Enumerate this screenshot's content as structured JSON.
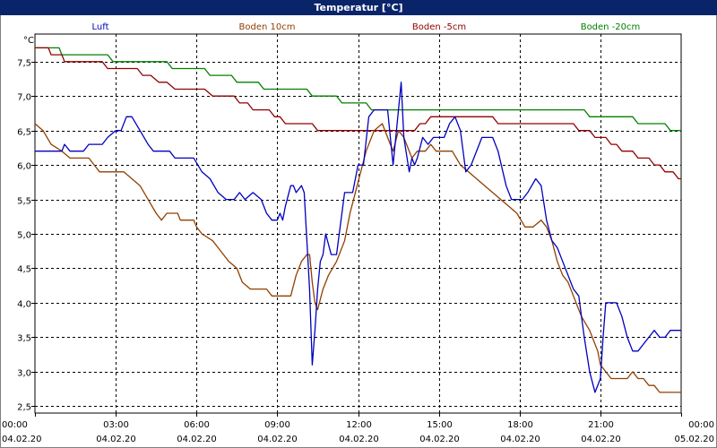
{
  "chart_data": {
    "type": "line",
    "title": "Temperatur [°C]",
    "ylabel": "°C",
    "xlabel": "",
    "ylim": [
      2.4,
      7.9
    ],
    "xlim": [
      0,
      24
    ],
    "grid": true,
    "legend_position": "top",
    "y_ticks": [
      "2,5",
      "3,0",
      "3,5",
      "4,0",
      "4,5",
      "5,0",
      "5,5",
      "6,0",
      "6,5",
      "7,0",
      "7,5"
    ],
    "y_tick_values": [
      2.5,
      3.0,
      3.5,
      4.0,
      4.5,
      5.0,
      5.5,
      6.0,
      6.5,
      7.0,
      7.5
    ],
    "x_ticks": [
      {
        "time": "00:00",
        "date": "04.02.20"
      },
      {
        "time": "03:00",
        "date": "04.02.20"
      },
      {
        "time": "06:00",
        "date": "04.02.20"
      },
      {
        "time": "09:00",
        "date": "04.02.20"
      },
      {
        "time": "12:00",
        "date": "04.02.20"
      },
      {
        "time": "15:00",
        "date": "04.02.20"
      },
      {
        "time": "18:00",
        "date": "04.02.20"
      },
      {
        "time": "21:00",
        "date": "04.02.20"
      },
      {
        "time": "00:00",
        "date": "05.02.20"
      }
    ],
    "x_tick_hours": [
      0,
      3,
      6,
      9,
      12,
      15,
      18,
      21,
      24
    ],
    "x_unit": "hours since 04.02.20 00:00",
    "series": [
      {
        "name": "Luft",
        "color": "#0000c0",
        "points": [
          [
            0,
            6.2
          ],
          [
            0.5,
            6.2
          ],
          [
            1,
            6.2
          ],
          [
            1.1,
            6.3
          ],
          [
            1.3,
            6.2
          ],
          [
            1.8,
            6.2
          ],
          [
            2,
            6.3
          ],
          [
            2.5,
            6.3
          ],
          [
            2.7,
            6.4
          ],
          [
            3,
            6.5
          ],
          [
            3.2,
            6.5
          ],
          [
            3.4,
            6.7
          ],
          [
            3.6,
            6.7
          ],
          [
            3.9,
            6.5
          ],
          [
            4.2,
            6.3
          ],
          [
            4.4,
            6.2
          ],
          [
            5,
            6.2
          ],
          [
            5.2,
            6.1
          ],
          [
            5.9,
            6.1
          ],
          [
            6.2,
            5.9
          ],
          [
            6.5,
            5.8
          ],
          [
            6.8,
            5.6
          ],
          [
            7.1,
            5.5
          ],
          [
            7.4,
            5.5
          ],
          [
            7.6,
            5.6
          ],
          [
            7.8,
            5.5
          ],
          [
            8.1,
            5.6
          ],
          [
            8.4,
            5.5
          ],
          [
            8.6,
            5.3
          ],
          [
            8.8,
            5.2
          ],
          [
            9,
            5.2
          ],
          [
            9.1,
            5.3
          ],
          [
            9.2,
            5.2
          ],
          [
            9.3,
            5.4
          ],
          [
            9.5,
            5.7
          ],
          [
            9.6,
            5.7
          ],
          [
            9.7,
            5.6
          ],
          [
            9.9,
            5.7
          ],
          [
            10,
            5.6
          ],
          [
            10.2,
            4.2
          ],
          [
            10.3,
            3.1
          ],
          [
            10.4,
            3.6
          ],
          [
            10.5,
            4.2
          ],
          [
            10.6,
            4.6
          ],
          [
            10.7,
            4.7
          ],
          [
            10.8,
            5.0
          ],
          [
            11,
            4.7
          ],
          [
            11.2,
            4.7
          ],
          [
            11.3,
            5.0
          ],
          [
            11.5,
            5.6
          ],
          [
            11.8,
            5.6
          ],
          [
            12,
            6.0
          ],
          [
            12.2,
            6.0
          ],
          [
            12.4,
            6.7
          ],
          [
            12.6,
            6.8
          ],
          [
            12.8,
            6.8
          ],
          [
            13.1,
            6.8
          ],
          [
            13.3,
            6.0
          ],
          [
            13.4,
            6.4
          ],
          [
            13.6,
            7.2
          ],
          [
            13.7,
            6.4
          ],
          [
            13.9,
            5.9
          ],
          [
            14,
            6.1
          ],
          [
            14.1,
            6.0
          ],
          [
            14.2,
            6.1
          ],
          [
            14.4,
            6.4
          ],
          [
            14.6,
            6.3
          ],
          [
            14.8,
            6.4
          ],
          [
            15.2,
            6.4
          ],
          [
            15.4,
            6.6
          ],
          [
            15.6,
            6.7
          ],
          [
            15.8,
            6.5
          ],
          [
            16,
            5.9
          ],
          [
            16.2,
            6.0
          ],
          [
            16.6,
            6.4
          ],
          [
            17,
            6.4
          ],
          [
            17.2,
            6.2
          ],
          [
            17.5,
            5.7
          ],
          [
            17.7,
            5.5
          ],
          [
            18.1,
            5.5
          ],
          [
            18.3,
            5.6
          ],
          [
            18.6,
            5.8
          ],
          [
            18.8,
            5.7
          ],
          [
            19,
            5.2
          ],
          [
            19.2,
            4.9
          ],
          [
            19.4,
            4.8
          ],
          [
            19.6,
            4.6
          ],
          [
            19.8,
            4.4
          ],
          [
            20,
            4.2
          ],
          [
            20.2,
            4.1
          ],
          [
            20.3,
            3.8
          ],
          [
            20.4,
            3.5
          ],
          [
            20.6,
            3.0
          ],
          [
            20.8,
            2.7
          ],
          [
            21,
            2.9
          ],
          [
            21.1,
            3.5
          ],
          [
            21.2,
            4.0
          ],
          [
            21.4,
            4.0
          ],
          [
            21.6,
            4.0
          ],
          [
            21.8,
            3.8
          ],
          [
            22,
            3.5
          ],
          [
            22.2,
            3.3
          ],
          [
            22.4,
            3.3
          ],
          [
            22.6,
            3.4
          ],
          [
            22.8,
            3.5
          ],
          [
            23,
            3.6
          ],
          [
            23.2,
            3.5
          ],
          [
            23.4,
            3.5
          ],
          [
            23.6,
            3.6
          ],
          [
            24,
            3.6
          ]
        ]
      },
      {
        "name": "Boden 10cm",
        "color": "#904000",
        "points": [
          [
            0,
            6.6
          ],
          [
            0.3,
            6.5
          ],
          [
            0.6,
            6.3
          ],
          [
            1,
            6.2
          ],
          [
            1.3,
            6.1
          ],
          [
            2,
            6.1
          ],
          [
            2.2,
            6.0
          ],
          [
            2.4,
            5.9
          ],
          [
            3.3,
            5.9
          ],
          [
            3.6,
            5.8
          ],
          [
            3.9,
            5.7
          ],
          [
            4.2,
            5.5
          ],
          [
            4.5,
            5.3
          ],
          [
            4.7,
            5.2
          ],
          [
            4.9,
            5.3
          ],
          [
            5.3,
            5.3
          ],
          [
            5.4,
            5.2
          ],
          [
            5.9,
            5.2
          ],
          [
            6,
            5.1
          ],
          [
            6.2,
            5.0
          ],
          [
            6.6,
            4.9
          ],
          [
            6.8,
            4.8
          ],
          [
            7.0,
            4.7
          ],
          [
            7.2,
            4.6
          ],
          [
            7.5,
            4.5
          ],
          [
            7.7,
            4.3
          ],
          [
            8,
            4.2
          ],
          [
            8.6,
            4.2
          ],
          [
            8.8,
            4.1
          ],
          [
            9.5,
            4.1
          ],
          [
            9.7,
            4.4
          ],
          [
            9.9,
            4.6
          ],
          [
            10.1,
            4.7
          ],
          [
            10.2,
            4.7
          ],
          [
            10.3,
            4.3
          ],
          [
            10.4,
            4.0
          ],
          [
            10.5,
            3.9
          ],
          [
            10.7,
            4.2
          ],
          [
            10.9,
            4.4
          ],
          [
            11.2,
            4.6
          ],
          [
            11.5,
            4.9
          ],
          [
            11.7,
            5.3
          ],
          [
            11.9,
            5.6
          ],
          [
            12.1,
            5.9
          ],
          [
            12.3,
            6.2
          ],
          [
            12.6,
            6.5
          ],
          [
            12.9,
            6.6
          ],
          [
            13.1,
            6.4
          ],
          [
            13.3,
            6.2
          ],
          [
            13.5,
            6.5
          ],
          [
            13.7,
            6.4
          ],
          [
            14,
            6.1
          ],
          [
            14.2,
            6.2
          ],
          [
            14.5,
            6.2
          ],
          [
            14.7,
            6.3
          ],
          [
            14.9,
            6.2
          ],
          [
            15.5,
            6.2
          ],
          [
            15.8,
            6.0
          ],
          [
            16.1,
            5.9
          ],
          [
            16.4,
            5.8
          ],
          [
            16.7,
            5.7
          ],
          [
            17,
            5.6
          ],
          [
            17.3,
            5.5
          ],
          [
            17.6,
            5.4
          ],
          [
            17.9,
            5.3
          ],
          [
            18.2,
            5.1
          ],
          [
            18.5,
            5.1
          ],
          [
            18.8,
            5.2
          ],
          [
            19,
            5.1
          ],
          [
            19.2,
            4.9
          ],
          [
            19.4,
            4.6
          ],
          [
            19.6,
            4.4
          ],
          [
            19.8,
            4.3
          ],
          [
            20,
            4.1
          ],
          [
            20.3,
            3.8
          ],
          [
            20.6,
            3.6
          ],
          [
            20.9,
            3.3
          ],
          [
            21,
            3.1
          ],
          [
            21.2,
            3.0
          ],
          [
            21.4,
            2.9
          ],
          [
            22,
            2.9
          ],
          [
            22.2,
            3.0
          ],
          [
            22.4,
            2.9
          ],
          [
            22.6,
            2.9
          ],
          [
            22.8,
            2.8
          ],
          [
            23,
            2.8
          ],
          [
            23.2,
            2.7
          ],
          [
            24,
            2.7
          ]
        ]
      },
      {
        "name": "Boden -5cm",
        "color": "#900000",
        "points": [
          [
            0,
            7.7
          ],
          [
            0.5,
            7.7
          ],
          [
            0.6,
            7.6
          ],
          [
            1.0,
            7.6
          ],
          [
            1.1,
            7.5
          ],
          [
            2.5,
            7.5
          ],
          [
            2.7,
            7.4
          ],
          [
            3.8,
            7.4
          ],
          [
            4.0,
            7.3
          ],
          [
            4.3,
            7.3
          ],
          [
            4.6,
            7.2
          ],
          [
            4.9,
            7.2
          ],
          [
            5.2,
            7.1
          ],
          [
            6.3,
            7.1
          ],
          [
            6.6,
            7.0
          ],
          [
            7.4,
            7.0
          ],
          [
            7.6,
            6.9
          ],
          [
            7.9,
            6.9
          ],
          [
            8.1,
            6.8
          ],
          [
            8.7,
            6.8
          ],
          [
            8.9,
            6.7
          ],
          [
            9.1,
            6.7
          ],
          [
            9.3,
            6.6
          ],
          [
            10.3,
            6.6
          ],
          [
            10.5,
            6.5
          ],
          [
            14.1,
            6.5
          ],
          [
            14.3,
            6.6
          ],
          [
            14.5,
            6.6
          ],
          [
            14.7,
            6.7
          ],
          [
            17.0,
            6.7
          ],
          [
            17.2,
            6.6
          ],
          [
            20.0,
            6.6
          ],
          [
            20.2,
            6.5
          ],
          [
            20.6,
            6.5
          ],
          [
            20.8,
            6.4
          ],
          [
            21.2,
            6.4
          ],
          [
            21.4,
            6.3
          ],
          [
            21.6,
            6.3
          ],
          [
            21.8,
            6.2
          ],
          [
            22.2,
            6.2
          ],
          [
            22.4,
            6.1
          ],
          [
            22.8,
            6.1
          ],
          [
            23.0,
            6.0
          ],
          [
            23.2,
            6.0
          ],
          [
            23.4,
            5.9
          ],
          [
            23.7,
            5.9
          ],
          [
            23.9,
            5.8
          ],
          [
            24,
            5.8
          ]
        ]
      },
      {
        "name": "Boden -20cm",
        "color": "#008000",
        "points": [
          [
            0,
            7.7
          ],
          [
            0.9,
            7.7
          ],
          [
            1.0,
            7.6
          ],
          [
            2.7,
            7.6
          ],
          [
            2.9,
            7.5
          ],
          [
            4.9,
            7.5
          ],
          [
            5.1,
            7.4
          ],
          [
            6.3,
            7.4
          ],
          [
            6.5,
            7.3
          ],
          [
            7.3,
            7.3
          ],
          [
            7.5,
            7.2
          ],
          [
            8.3,
            7.2
          ],
          [
            8.5,
            7.1
          ],
          [
            10.1,
            7.1
          ],
          [
            10.3,
            7.0
          ],
          [
            11.2,
            7.0
          ],
          [
            11.4,
            6.9
          ],
          [
            12.3,
            6.9
          ],
          [
            12.5,
            6.8
          ],
          [
            16.6,
            6.8
          ],
          [
            16.8,
            6.8
          ],
          [
            20.4,
            6.8
          ],
          [
            20.6,
            6.7
          ],
          [
            22.2,
            6.7
          ],
          [
            22.4,
            6.6
          ],
          [
            23.4,
            6.6
          ],
          [
            23.6,
            6.5
          ],
          [
            24,
            6.5
          ]
        ]
      }
    ]
  }
}
